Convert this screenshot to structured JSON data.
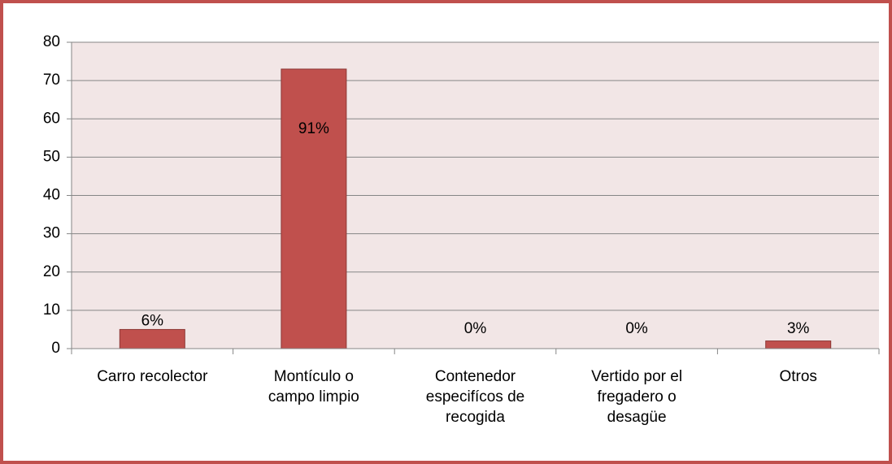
{
  "chart_data": {
    "type": "bar",
    "categories": [
      "Carro recolector",
      "Montículo o campo limpio",
      "Contenedor especifícos de recogida",
      "Vertido por el fregadero o desagüe",
      "Otros"
    ],
    "values": [
      5,
      73,
      0,
      0,
      2
    ],
    "annotations": [
      "6%",
      "91%",
      "0%",
      "0%",
      "3%"
    ],
    "color": "#c0504d",
    "ylim": [
      0,
      80
    ],
    "yticks": [
      0,
      10,
      20,
      30,
      40,
      50,
      60,
      70,
      80
    ],
    "grid": true
  }
}
